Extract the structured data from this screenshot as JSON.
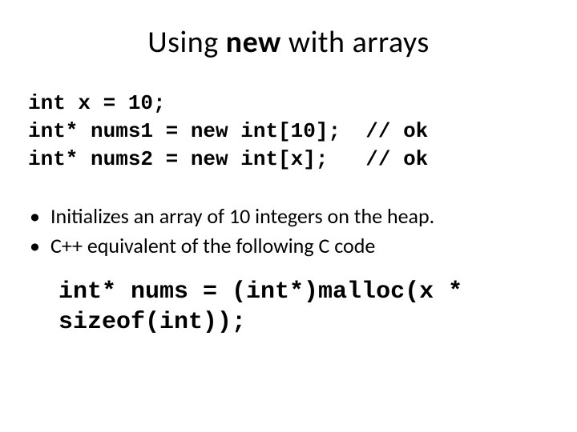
{
  "title": {
    "pre": "Using ",
    "bold": "new",
    "post": " with arrays",
    "fontsize": 38,
    "color": "#000000"
  },
  "code1": {
    "line1": "int x = 10;",
    "line2": "int* nums1 = new int[10];  // ok",
    "line3": "int* nums2 = new int[x];   // ok",
    "font": "Consolas",
    "fontsize": 26,
    "weight": "bold",
    "color": "#000000"
  },
  "bullets": {
    "items": [
      "Initializes an array of 10 integers on the heap.",
      "C++ equivalent of the following C code"
    ],
    "fontsize": 26,
    "color": "#000000"
  },
  "code2": {
    "line1": "int* nums = (int*)malloc(x *",
    "line2": "sizeof(int));",
    "font": "Consolas",
    "fontsize": 30,
    "weight": "bold",
    "color": "#000000"
  },
  "background_color": "#ffffff"
}
